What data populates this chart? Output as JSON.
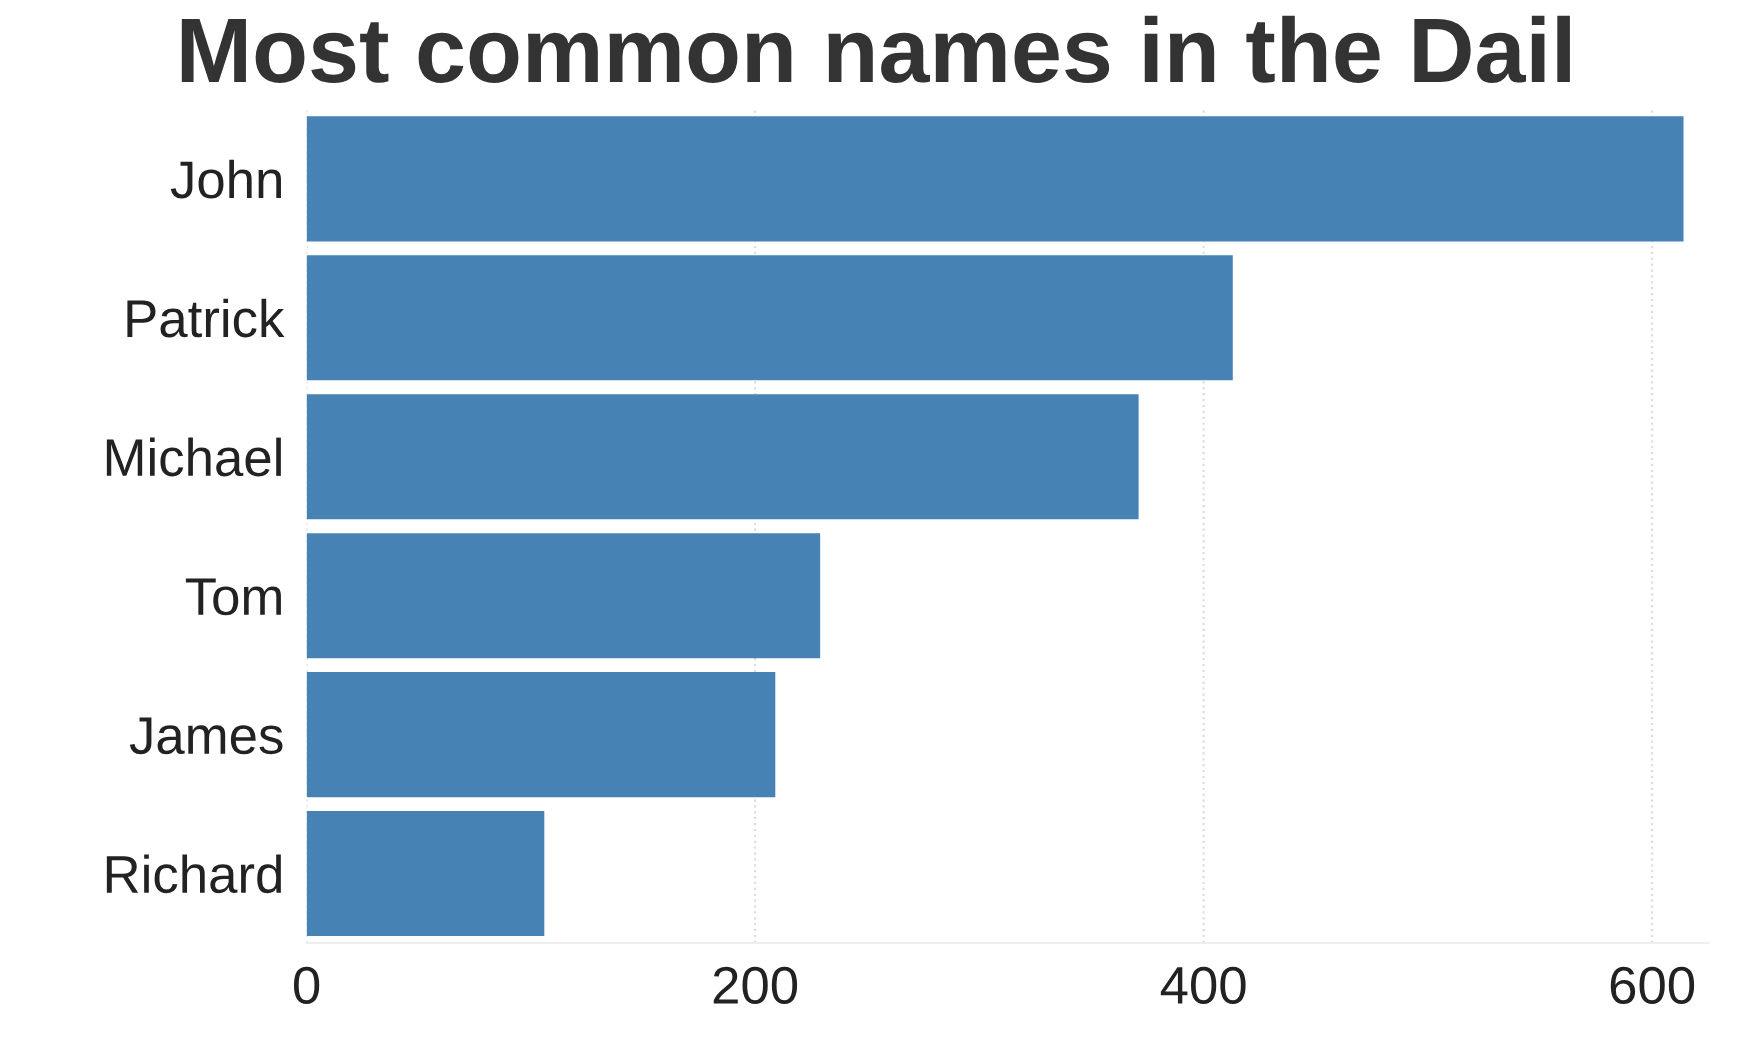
{
  "chart_data": {
    "type": "bar",
    "orientation": "horizontal",
    "title": "Most common names in the Dail",
    "categories": [
      "John",
      "Patrick",
      "Michael",
      "Tom",
      "James",
      "Richard"
    ],
    "values": [
      614,
      413,
      371,
      229,
      209,
      106
    ],
    "color": "#4682b4",
    "xlim": [
      0,
      625
    ],
    "xticks": [
      0,
      200,
      400,
      600
    ],
    "grid": "x"
  }
}
